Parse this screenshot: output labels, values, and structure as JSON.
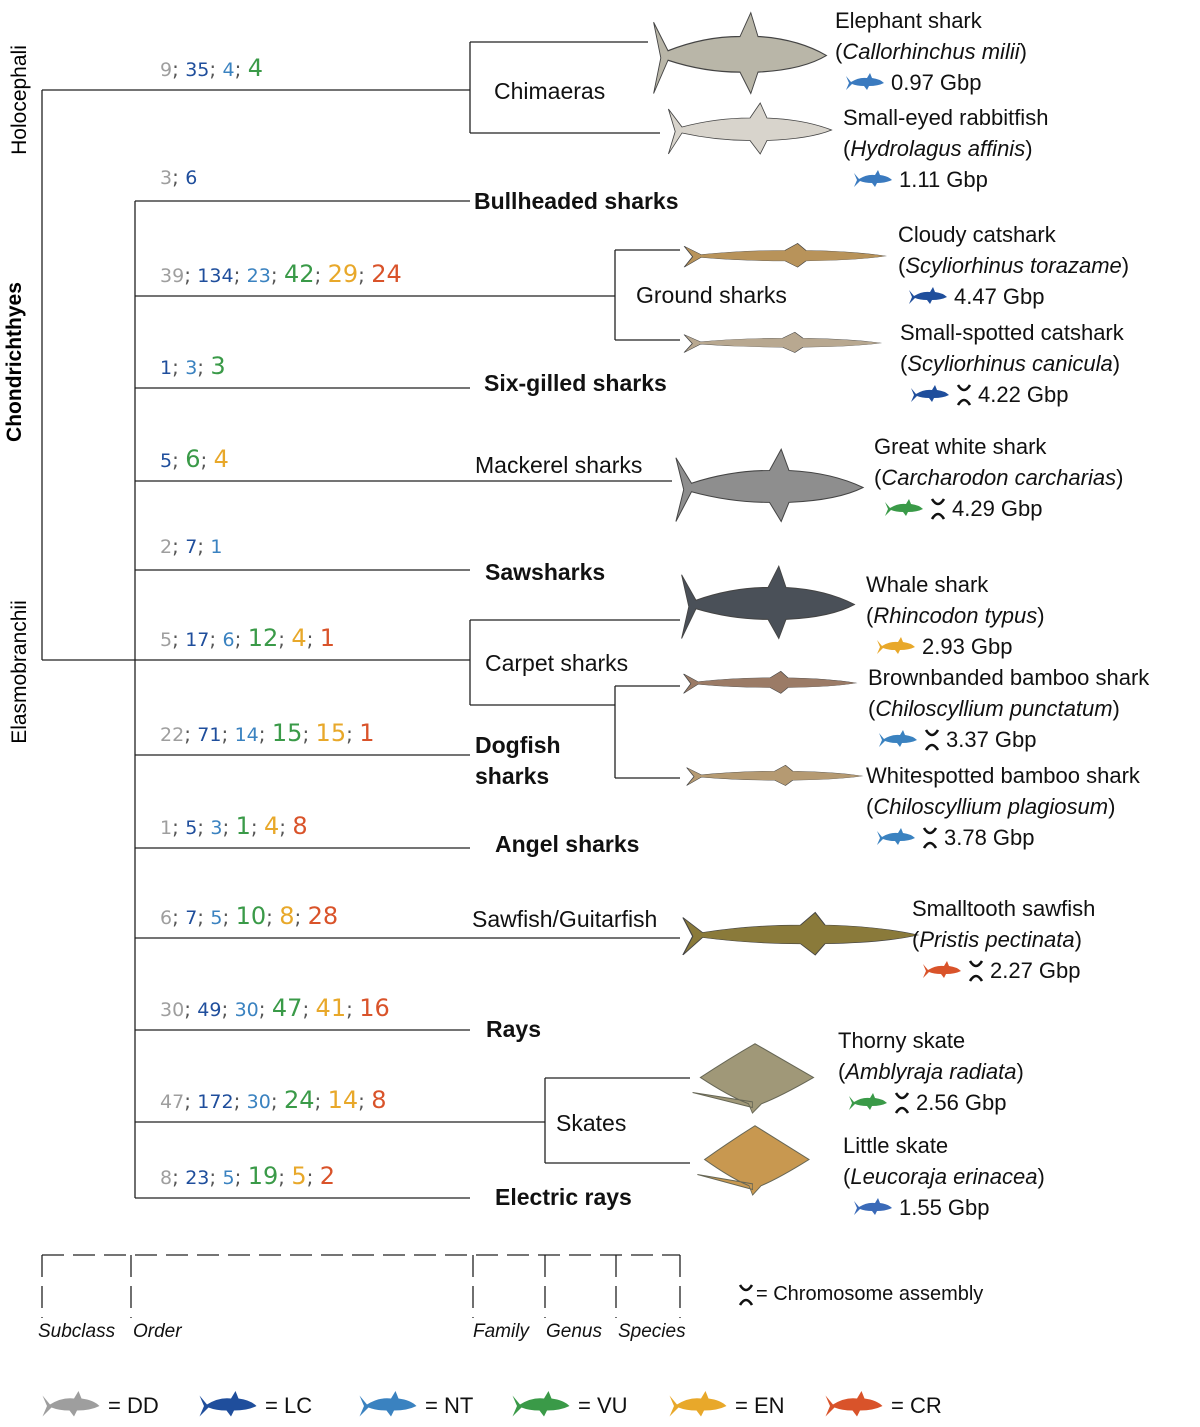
{
  "class": "Chondrichthyes",
  "subclasses": [
    "Holocephali",
    "Elasmobranchii"
  ],
  "legend": [
    {
      "label": "= DD",
      "color": "#9e9e9e"
    },
    {
      "label": "= LC",
      "color": "#1f4e9c"
    },
    {
      "label": "= NT",
      "color": "#3a82c0"
    },
    {
      "label": "= VU",
      "color": "#3a9a48"
    },
    {
      "label": "= EN",
      "color": "#e8a82a"
    },
    {
      "label": "= CR",
      "color": "#d9532a"
    }
  ],
  "chromosome_legend": "= Chromosome assembly",
  "levels": [
    "Subclass",
    "Order",
    "Family",
    "Genus",
    "Species"
  ],
  "orders": [
    {
      "name": "Chimaeras",
      "counts": [
        9,
        35,
        4,
        4,
        null,
        null
      ],
      "species": [
        {
          "name": "Elephant shark",
          "latin": "Callorhinchus milii",
          "genome": "0.97 Gbp",
          "chromosome": false,
          "color": "#3a7abf"
        },
        {
          "name": "Small-eyed rabbitfish",
          "latin": "Hydrolagus affinis",
          "genome": "1.11 Gbp",
          "chromosome": false,
          "color": "#3a7abf"
        }
      ]
    },
    {
      "name": "Bullheaded sharks",
      "counts": [
        3,
        6,
        null,
        null,
        null,
        null
      ],
      "species": []
    },
    {
      "name": "Ground sharks",
      "counts": [
        39,
        134,
        23,
        42,
        29,
        24
      ],
      "species": [
        {
          "name": "Cloudy catshark",
          "latin": "Scyliorhinus torazame",
          "genome": "4.47 Gbp",
          "chromosome": false,
          "color": "#1f4e9c"
        },
        {
          "name": "Small-spotted catshark",
          "latin": "Scyliorhinus canicula",
          "genome": "4.22 Gbp",
          "chromosome": true,
          "color": "#1f4e9c"
        }
      ]
    },
    {
      "name": "Six-gilled sharks",
      "counts": [
        null,
        1,
        3,
        3,
        null,
        null
      ],
      "species": []
    },
    {
      "name": "Mackerel sharks",
      "counts": [
        null,
        5,
        null,
        6,
        4,
        null
      ],
      "species": [
        {
          "name": "Great white shark",
          "latin": "Carcharodon carcharias",
          "genome": "4.29 Gbp",
          "chromosome": true,
          "color": "#3a9a48"
        }
      ]
    },
    {
      "name": "Sawsharks",
      "counts": [
        2,
        7,
        1,
        null,
        null,
        null
      ],
      "species": []
    },
    {
      "name": "Carpet sharks",
      "counts": [
        5,
        17,
        6,
        12,
        4,
        1
      ],
      "species": [
        {
          "name": "Whale shark",
          "latin": "Rhincodon typus",
          "genome": "2.93 Gbp",
          "chromosome": false,
          "color": "#e8a82a"
        },
        {
          "name": "Brownbanded bamboo shark",
          "latin": "Chiloscyllium punctatum",
          "genome": "3.37 Gbp",
          "chromosome": true,
          "color": "#3a82c0"
        },
        {
          "name": "Whitespotted bamboo shark",
          "latin": "Chiloscyllium plagiosum",
          "genome": "3.78 Gbp",
          "chromosome": true,
          "color": "#3a82c0"
        }
      ]
    },
    {
      "name": "Dogfish sharks",
      "counts": [
        22,
        71,
        14,
        15,
        15,
        1
      ],
      "species": []
    },
    {
      "name": "Angel sharks",
      "counts": [
        1,
        5,
        3,
        1,
        4,
        8
      ],
      "species": []
    },
    {
      "name": "Sawfish/Guitarfish",
      "counts": [
        6,
        7,
        5,
        10,
        8,
        28
      ],
      "species": [
        {
          "name": "Smalltooth sawfish",
          "latin": "Pristis pectinata",
          "genome": "2.27 Gbp",
          "chromosome": true,
          "color": "#d9532a"
        }
      ]
    },
    {
      "name": "Rays",
      "counts": [
        30,
        49,
        30,
        47,
        41,
        16
      ],
      "species": []
    },
    {
      "name": "Skates",
      "counts": [
        47,
        172,
        30,
        24,
        14,
        8
      ],
      "species": [
        {
          "name": "Thorny skate",
          "latin": "Amblyraja radiata",
          "genome": "2.56 Gbp",
          "chromosome": true,
          "color": "#3a9a48"
        },
        {
          "name": "Little skate",
          "latin": "Leucoraja erinacea",
          "genome": "1.55 Gbp",
          "chromosome": false,
          "color": "#3a6ab8"
        }
      ]
    },
    {
      "name": "Electric rays",
      "counts": [
        8,
        23,
        5,
        19,
        5,
        2
      ],
      "species": []
    }
  ]
}
